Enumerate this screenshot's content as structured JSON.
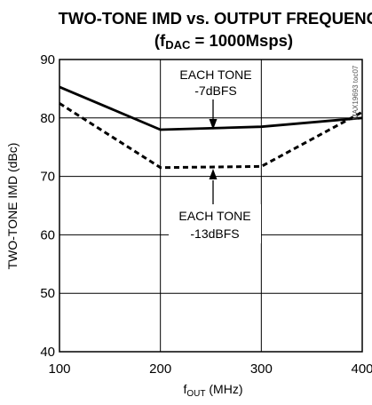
{
  "chart_data": {
    "type": "line",
    "title_line1": "TWO-TONE IMD vs. OUTPUT FREQUENCY",
    "title_line2_prefix": "(f",
    "title_line2_sub": "DAC",
    "title_line2_suffix": " = 1000Msps)",
    "ylabel": "TWO-TONE IMD (dBc)",
    "xlabel_main": "f",
    "xlabel_sub": "OUT",
    "xlabel_suffix": " (MHz)",
    "xlim": [
      100,
      400
    ],
    "ylim": [
      40,
      90
    ],
    "x_ticks": [
      100,
      200,
      300,
      400
    ],
    "y_ticks": [
      40,
      50,
      60,
      70,
      80,
      90
    ],
    "grid": true,
    "watermark": "MAX19693 toc07",
    "series": [
      {
        "name": "EACH TONE -7dBFS",
        "style": "solid",
        "x": [
          100,
          200,
          300,
          400
        ],
        "y": [
          85.3,
          78.0,
          78.5,
          80.0
        ]
      },
      {
        "name": "EACH TONE -13dBFS",
        "style": "dashed",
        "x": [
          100,
          200,
          300,
          400
        ],
        "y": [
          82.5,
          71.5,
          71.7,
          81.0
        ]
      }
    ],
    "annotations": [
      {
        "line1": "EACH TONE",
        "line2": "-7dBFS"
      },
      {
        "line1": "EACH TONE",
        "line2": "-13dBFS"
      }
    ]
  }
}
